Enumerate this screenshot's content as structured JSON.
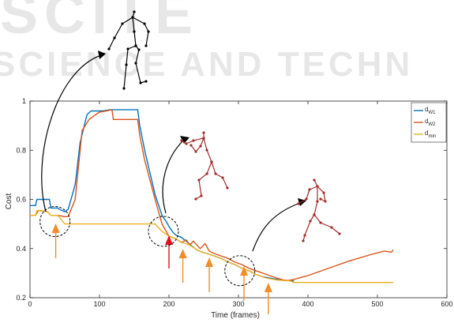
{
  "watermark": {
    "line1": "SCIENCE AND TECHN",
    "brand_letters": "SCITE"
  },
  "chart_data": {
    "type": "line",
    "xlabel": "Time (frames)",
    "ylabel": "Cost",
    "xlim": [
      0,
      600
    ],
    "ylim": [
      0.2,
      1
    ],
    "xticks": [
      0,
      100,
      200,
      300,
      400,
      500,
      600
    ],
    "yticks": [
      0.2,
      0.4,
      0.6,
      0.8,
      1
    ],
    "grid": false,
    "legend_placement": "top-right",
    "series": [
      {
        "name": "d_W1",
        "legend_main": "d",
        "legend_sub": "W1",
        "color": "#0072BD",
        "x": [
          0,
          8,
          10,
          28,
          30,
          40,
          42,
          50,
          55,
          65,
          72,
          82,
          88,
          95,
          105,
          115,
          118,
          135,
          155,
          158,
          165,
          180,
          190,
          196,
          200,
          206,
          210,
          218,
          225,
          233,
          240,
          248,
          255,
          265,
          275,
          285,
          295,
          305,
          315,
          325,
          335,
          345,
          360,
          370,
          380
        ],
        "y": [
          0.575,
          0.575,
          0.6,
          0.6,
          0.565,
          0.565,
          0.56,
          0.55,
          0.56,
          0.66,
          0.83,
          0.945,
          0.96,
          0.96,
          0.96,
          0.965,
          0.965,
          0.965,
          0.965,
          0.9,
          0.8,
          0.62,
          0.535,
          0.51,
          0.49,
          0.465,
          0.455,
          0.445,
          0.43,
          0.41,
          0.395,
          0.385,
          0.38,
          0.37,
          0.36,
          0.345,
          0.335,
          0.32,
          0.31,
          0.295,
          0.285,
          0.28,
          0.272,
          0.27,
          0.268
        ]
      },
      {
        "name": "d_W2",
        "legend_main": "d",
        "legend_sub": "W2",
        "color": "#D95319",
        "x": [
          0,
          8,
          12,
          25,
          30,
          40,
          50,
          55,
          65,
          75,
          85,
          92,
          100,
          110,
          118,
          120,
          135,
          155,
          158,
          165,
          180,
          190,
          200,
          210,
          218,
          225,
          230,
          235,
          245,
          252,
          258,
          265,
          275,
          285,
          295,
          305,
          315,
          325,
          340,
          355,
          365,
          372,
          380,
          400,
          440,
          460,
          490,
          510,
          520,
          523
        ],
        "y": [
          0.535,
          0.535,
          0.555,
          0.55,
          0.535,
          0.535,
          0.53,
          0.53,
          0.6,
          0.88,
          0.925,
          0.94,
          0.955,
          0.96,
          0.965,
          0.925,
          0.925,
          0.925,
          0.86,
          0.76,
          0.6,
          0.5,
          0.45,
          0.44,
          0.425,
          0.435,
          0.415,
          0.43,
          0.4,
          0.42,
          0.39,
          0.38,
          0.37,
          0.36,
          0.345,
          0.335,
          0.32,
          0.31,
          0.295,
          0.28,
          0.272,
          0.27,
          0.275,
          0.29,
          0.33,
          0.35,
          0.375,
          0.39,
          0.385,
          0.395
        ]
      },
      {
        "name": "d_min",
        "legend_main": "d",
        "legend_sub": "min",
        "color": "#EDB120",
        "x": [
          0,
          8,
          10,
          25,
          30,
          40,
          50,
          100,
          180,
          190,
          200,
          210,
          218,
          225,
          232,
          240,
          248,
          255,
          265,
          275,
          285,
          295,
          305,
          315,
          325,
          340,
          355,
          365,
          375,
          380,
          523
        ],
        "y": [
          0.535,
          0.535,
          0.555,
          0.55,
          0.535,
          0.535,
          0.5,
          0.5,
          0.5,
          0.47,
          0.45,
          0.44,
          0.425,
          0.42,
          0.41,
          0.395,
          0.385,
          0.38,
          0.37,
          0.36,
          0.345,
          0.335,
          0.32,
          0.31,
          0.295,
          0.28,
          0.272,
          0.27,
          0.268,
          0.262,
          0.262
        ]
      }
    ],
    "annotations": {
      "orange_arrows": [
        37,
        220,
        258,
        308,
        343
      ],
      "red_arrow": 200,
      "dashed_circles": [
        {
          "x": 36,
          "y": 0.51
        },
        {
          "x": 192,
          "y": 0.47
        },
        {
          "x": 302,
          "y": 0.31
        }
      ]
    }
  },
  "figures": {
    "skeleton_color": "#000000",
    "skeleton_red_color": "#A52A2A"
  }
}
